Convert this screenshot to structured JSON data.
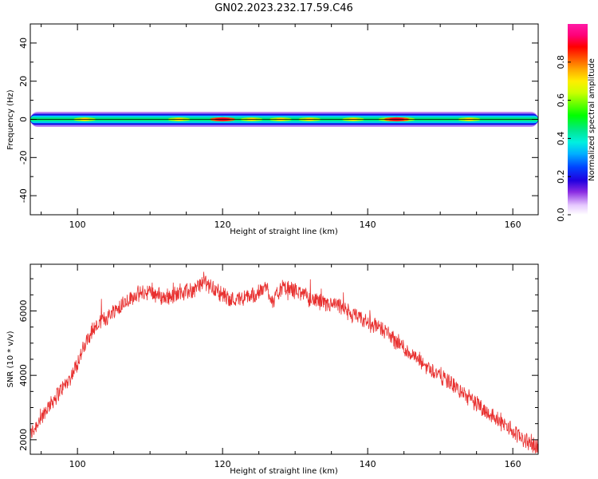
{
  "figure": {
    "title": "GN02.2023.232.17.59.C46"
  },
  "chart_data": [
    {
      "type": "heatmap",
      "xlabel": "Height of straight line (km)",
      "ylabel": "Frequency (Hz)",
      "xlim": [
        93.5,
        163.5
      ],
      "ylim": [
        -50,
        50
      ],
      "xticks": [
        100,
        120,
        140,
        160
      ],
      "yticks": [
        -40,
        -20,
        0,
        20,
        40
      ],
      "ytick_labels": [
        "-40",
        "-20",
        "0",
        "20",
        "40"
      ],
      "band_center_hz": 0,
      "band_halfwidth_hz": [
        4,
        3,
        2,
        1
      ],
      "hotspots_km": [
        101,
        114,
        120,
        124,
        128,
        132,
        138,
        143,
        145,
        154
      ],
      "peak_km": [
        120,
        144
      ],
      "colorbar": {
        "label": "Normalized spectral amplitude",
        "range": [
          0,
          1
        ],
        "ticks": [
          "0.0",
          "0.2",
          "0.4",
          "0.6",
          "0.8"
        ],
        "tick_values": [
          0.0,
          0.2,
          0.4,
          0.6,
          0.8
        ],
        "colormap": "gist_ncar_r"
      },
      "grid": false
    },
    {
      "type": "line",
      "xlabel": "Height of straight line (km)",
      "ylabel": "SNR (10 * v/v)",
      "xlim": [
        93.5,
        163.5
      ],
      "ylim": [
        1550,
        7450
      ],
      "xticks": [
        100,
        120,
        140,
        160
      ],
      "yticks": [
        2000,
        4000,
        6000
      ],
      "ytick_labels": [
        "2000",
        "4000",
        "6000"
      ],
      "color": "#e8302f",
      "grid": false,
      "series": [
        {
          "x": [
            93.5,
            95,
            97,
            99,
            101,
            102,
            104,
            106,
            108,
            110,
            112,
            114,
            116,
            117.5,
            119,
            121,
            123,
            125,
            126,
            127,
            128,
            130,
            132,
            134,
            136,
            138,
            140,
            142,
            144,
            146,
            148,
            150,
            152,
            154,
            156,
            158,
            160,
            162,
            163.5
          ],
          "values": [
            2150,
            2700,
            3350,
            3900,
            4900,
            5400,
            5800,
            6200,
            6500,
            6600,
            6400,
            6550,
            6650,
            6950,
            6650,
            6350,
            6400,
            6550,
            6750,
            6300,
            6700,
            6650,
            6400,
            6200,
            6150,
            5850,
            5650,
            5450,
            5050,
            4650,
            4300,
            4000,
            3650,
            3300,
            2950,
            2600,
            2250,
            1950,
            1800
          ]
        }
      ]
    }
  ]
}
